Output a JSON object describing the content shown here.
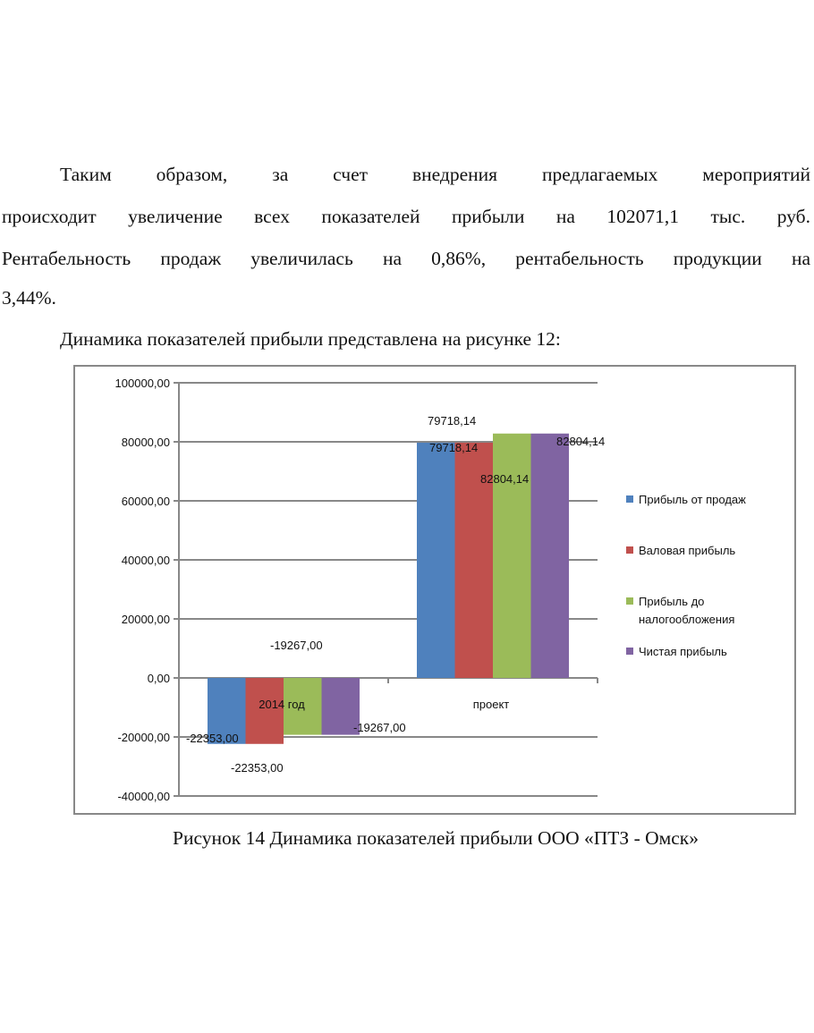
{
  "paragraph1": {
    "lines": [
      "Таким образом, за счет внедрения предлагаемых мероприятий",
      "происходит увеличение всех показателей прибыли на 102071,1 тыс. руб.",
      "Рентабельность продаж увеличилась на 0,86%, рентабельность продукции на",
      "3,44%."
    ]
  },
  "paragraph2": "Динамика показателей прибыли представлена на рисунке 12:",
  "caption": "Рисунок 14 Динамика показателей прибыли ООО «ПТЗ - Омск»",
  "chart_data": {
    "type": "bar",
    "title": "",
    "categories": [
      "2014 год",
      "проект"
    ],
    "series": [
      {
        "name": "Прибыль от продаж",
        "values": [
          -22353.0,
          79718.14
        ],
        "color": "#4f81bd",
        "labels": [
          "-22353,00",
          "79718,14"
        ]
      },
      {
        "name": "Валовая прибыль",
        "values": [
          -22353.0,
          79718.14
        ],
        "color": "#c0504d",
        "labels": [
          "-22353,00",
          "79718,14"
        ]
      },
      {
        "name": "Прибыль до налогообложения",
        "values": [
          -19267.0,
          82804.14
        ],
        "color": "#9bbb59",
        "labels": [
          "-19267,00",
          "82804,14"
        ]
      },
      {
        "name": "Чистая прибыль",
        "values": [
          -19267.0,
          82804.14
        ],
        "color": "#8064a2",
        "labels": [
          "-19267,00",
          "82804,14"
        ]
      }
    ],
    "ylim": [
      -40000,
      100000
    ],
    "yticks": [
      "100000,00",
      "80000,00",
      "60000,00",
      "40000,00",
      "20000,00",
      "0,00",
      "-20000,00",
      "-40000,00"
    ],
    "ytick_values": [
      100000,
      80000,
      60000,
      40000,
      20000,
      0,
      -20000,
      -40000
    ],
    "grid": true,
    "legend": "right",
    "legend_lines": [
      [
        "Прибыль от продаж"
      ],
      [
        "Валовая прибыль"
      ],
      [
        "Прибыль до",
        "налогообложения"
      ],
      [
        "Чистая прибыль"
      ]
    ]
  }
}
